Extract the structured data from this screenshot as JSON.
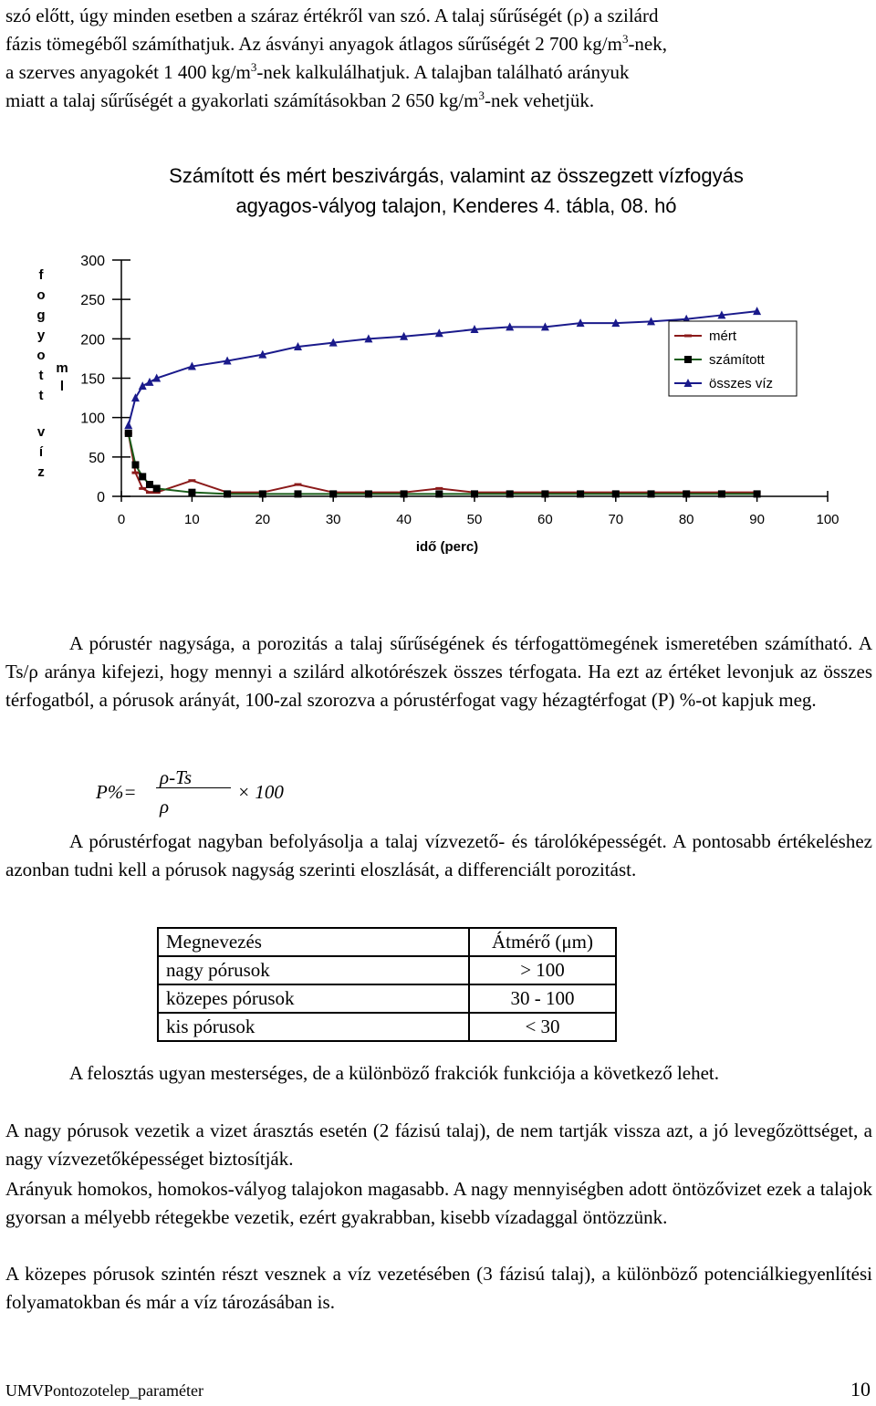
{
  "intro": {
    "line1": "szó előtt, úgy minden esetben a száraz értékről van szó. A talaj sűrűségét (ρ) a szilárd",
    "line2_a": "fázis tömegéből számíthatjuk. Az ásványi anyagok átlagos sűrűségét 2 700 kg/m",
    "line2_b": "-nek,",
    "line3_a": "a szerves anyagokét 1 400 kg/m",
    "line3_b": "-nek kalkulálhatjuk. A talajban található arányuk",
    "line4_a": "miatt a talaj sűrűségét a gyakorlati számításokban 2 650 kg/m",
    "line4_b": "-nek vehetjük.",
    "sup": "3"
  },
  "chart_data": {
    "type": "line",
    "title_line1": "Számított és mért beszivárgás, valamint az összegzett vízfogyás",
    "title_line2": "agyagos-vályog talajon, Kenderes 4. tábla, 08. hó",
    "xlabel": "idő (perc)",
    "ylabel_outer": [
      "f",
      "o",
      "g",
      "y",
      "o",
      "t",
      "t",
      "v",
      "í",
      "z"
    ],
    "ylabel_inner": [
      "m",
      "l"
    ],
    "xlim": [
      0,
      100
    ],
    "ylim": [
      0,
      300
    ],
    "xticks": [
      "0",
      "10",
      "20",
      "30",
      "40",
      "50",
      "60",
      "70",
      "80",
      "90",
      "100"
    ],
    "yticks": [
      "300",
      "250",
      "200",
      "150",
      "100",
      "50",
      "0"
    ],
    "legend_position": "right",
    "series": [
      {
        "name": "mért",
        "color": "#8b1a1a",
        "marker": "dash",
        "x": [
          1,
          2,
          3,
          4,
          5,
          10,
          15,
          20,
          25,
          30,
          35,
          40,
          45,
          50,
          55,
          60,
          65,
          70,
          75,
          80,
          85,
          90
        ],
        "y": [
          80,
          30,
          10,
          5,
          5,
          20,
          5,
          5,
          15,
          5,
          5,
          5,
          10,
          5,
          5,
          5,
          5,
          5,
          5,
          5,
          5,
          5
        ]
      },
      {
        "name": "számított",
        "color": "#1a5e1a",
        "marker": "square",
        "x": [
          1,
          2,
          3,
          4,
          5,
          10,
          15,
          20,
          25,
          30,
          35,
          40,
          45,
          50,
          55,
          60,
          65,
          70,
          75,
          80,
          85,
          90
        ],
        "y": [
          80,
          40,
          25,
          15,
          10,
          5,
          3,
          3,
          3,
          3,
          3,
          3,
          3,
          3,
          3,
          3,
          3,
          3,
          3,
          3,
          3,
          3
        ]
      },
      {
        "name": "összes víz",
        "color": "#1a1a8b",
        "marker": "triangle",
        "x": [
          1,
          2,
          3,
          4,
          5,
          10,
          15,
          20,
          25,
          30,
          35,
          40,
          45,
          50,
          55,
          60,
          65,
          70,
          75,
          80,
          85,
          90
        ],
        "y": [
          90,
          125,
          140,
          145,
          150,
          165,
          172,
          180,
          190,
          195,
          200,
          203,
          207,
          212,
          215,
          215,
          220,
          220,
          222,
          225,
          230,
          235
        ]
      }
    ]
  },
  "para2": "A pórustér nagysága, a porozitás a talaj sűrűségének és térfogattömegének ismeretében számítható. A Ts/ρ aránya kifejezi, hogy mennyi a szilárd alkotórészek összes térfogata. Ha ezt az értéket levonjuk az összes térfogatból, a pórusok arányát, 100-zal szorozva a pórustérfogat vagy hézagtérfogat (P) %-ot kapjuk meg.",
  "formula": {
    "lhs": "P%=",
    "numerator": "ρ-Ts",
    "denominator": "ρ",
    "times": "× 100"
  },
  "para3": "A pórustérfogat nagyban befolyásolja a talaj vízvezető- és tárolóképességét. A pontosabb értékeléshez azonban tudni kell a pórusok nagyság szerinti eloszlását, a differenciált porozitást.",
  "table": {
    "header": [
      "Megnevezés",
      "Átmérő (μm)"
    ],
    "rows": [
      [
        "nagy pórusok",
        "> 100"
      ],
      [
        "közepes pórusok",
        "30 - 100"
      ],
      [
        "kis pórusok",
        "< 30"
      ]
    ]
  },
  "para4": "A felosztás ugyan mesterséges, de a különböző frakciók funkciója a következő lehet.",
  "para5": "A nagy pórusok vezetik a vizet árasztás esetén (2 fázisú talaj), de nem tartják vissza azt, a jó levegőzöttséget, a nagy vízvezetőképességet biztosítják.",
  "para6": "Arányuk homokos, homokos-vályog talajokon magasabb. A nagy mennyiségben adott öntözővizet ezek a talajok gyorsan a mélyebb rétegekbe vezetik, ezért gyakrabban, kisebb vízadaggal öntözzünk.",
  "para7": "A közepes pórusok szintén részt vesznek a víz vezetésében (3 fázisú talaj), a különböző potenciálkiegyenlítési folyamatokban és már a víz tározásában is.",
  "footer": {
    "left": "UMVPontozotelep_paraméter",
    "page": "10"
  }
}
